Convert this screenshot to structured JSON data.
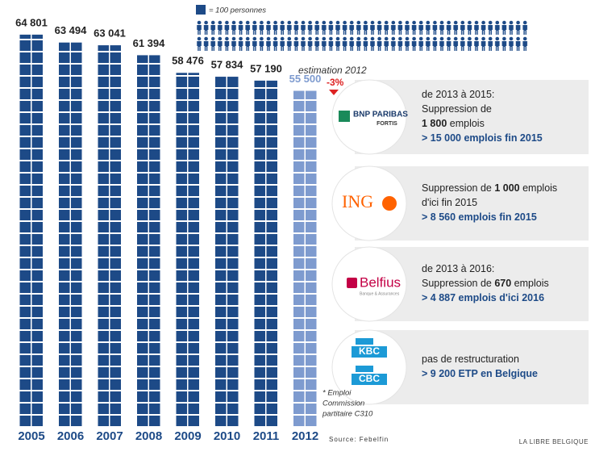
{
  "chart_data": {
    "type": "pictogram-bar",
    "categories": [
      "2005",
      "2006",
      "2007",
      "2008",
      "2009",
      "2010",
      "2011",
      "2012"
    ],
    "values": [
      64801,
      63494,
      63041,
      61394,
      58476,
      57834,
      57190,
      55500
    ],
    "value_labels": [
      "64 801",
      "63 494",
      "63 041",
      "61 394",
      "58 476",
      "57 834",
      "57 190",
      "55 500"
    ],
    "colors": [
      "#1d4a87",
      "#1d4a87",
      "#1d4a87",
      "#1d4a87",
      "#1d4a87",
      "#1d4a87",
      "#1d4a87",
      "#7e9bcf"
    ],
    "ylim": [
      0,
      70000
    ],
    "legend": "= 100 personnes",
    "annotations": {
      "estimate": "estimation 2012",
      "change": "-3%",
      "footnote": [
        "* Emploi",
        "Commission",
        "partitaire C310"
      ],
      "source": "Source: Febelfin",
      "credit": "LA LIBRE BELGIQUE"
    }
  },
  "banks": [
    {
      "logo": [
        "BNP PARIBAS",
        "FORTIS"
      ],
      "lines": [
        [
          {
            "text": "de 2013 à 2015:"
          }
        ],
        [
          {
            "text": "Suppression de"
          }
        ],
        [
          {
            "text": "1 800",
            "bold": true
          },
          {
            "text": " emplois"
          }
        ],
        [
          {
            "text": "> 15 000 emplois fin 2015",
            "bold": true,
            "blue": true
          }
        ]
      ]
    },
    {
      "logo": [
        "ING"
      ],
      "lines": [
        [
          {
            "text": "Suppression de "
          },
          {
            "text": "1 000",
            "bold": true
          },
          {
            "text": " emplois"
          }
        ],
        [
          {
            "text": "d'ici fin 2015"
          }
        ],
        [
          {
            "text": "> 8 560 emplois fin 2015",
            "bold": true,
            "blue": true
          }
        ]
      ]
    },
    {
      "logo": [
        "Belfius",
        "Banque & Assurances"
      ],
      "lines": [
        [
          {
            "text": "de 2013 à 2016:"
          }
        ],
        [
          {
            "text": "Suppression de "
          },
          {
            "text": "670",
            "bold": true
          },
          {
            "text": " emplois"
          }
        ],
        [
          {
            "text": "> 4 887 emplois d'ici 2016",
            "bold": true,
            "blue": true
          }
        ]
      ]
    },
    {
      "logo": [
        "KBC",
        "CBC"
      ],
      "lines": [
        [
          {
            "text": "pas de restructuration"
          }
        ],
        [
          {
            "text": "> 9 200 ETP en Belgique",
            "bold": true,
            "blue": true
          }
        ]
      ]
    }
  ]
}
